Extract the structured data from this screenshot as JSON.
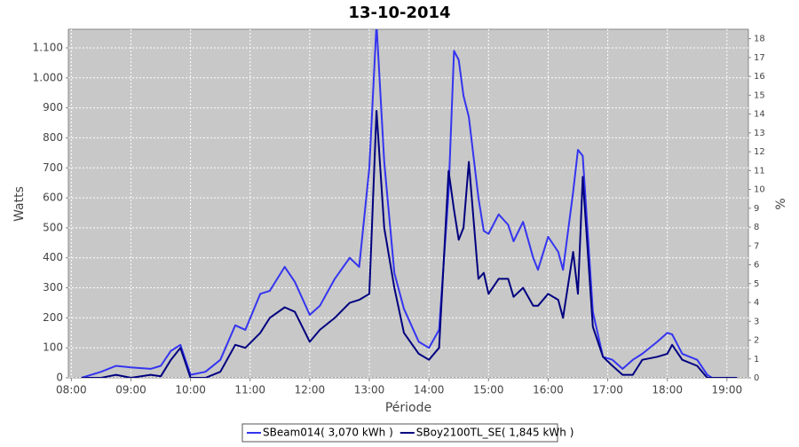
{
  "chart_data": {
    "type": "line",
    "title": "13-10-2014",
    "x_label": "Période",
    "y_label": "Watts",
    "y2_label": "%",
    "x": [
      8.17,
      8.5,
      8.75,
      9.0,
      9.33,
      9.5,
      9.67,
      9.83,
      10.0,
      10.25,
      10.5,
      10.75,
      10.92,
      11.17,
      11.33,
      11.58,
      11.75,
      12.0,
      12.17,
      12.42,
      12.67,
      12.83,
      13.0,
      13.12,
      13.25,
      13.42,
      13.58,
      13.83,
      14.0,
      14.17,
      14.33,
      14.42,
      14.5,
      14.58,
      14.67,
      14.83,
      14.92,
      15.0,
      15.17,
      15.33,
      15.42,
      15.58,
      15.75,
      15.83,
      16.0,
      16.17,
      16.25,
      16.42,
      16.5,
      16.58,
      16.75,
      16.92,
      17.08,
      17.25,
      17.42,
      17.58,
      17.83,
      18.0,
      18.08,
      18.25,
      18.5,
      18.67,
      18.75,
      19.17
    ],
    "series": [
      {
        "name": "SBeam014( 3,070 kWh )",
        "color": "#3434f0",
        "values": [
          0,
          20,
          40,
          35,
          30,
          40,
          90,
          110,
          10,
          20,
          60,
          175,
          160,
          280,
          290,
          370,
          320,
          210,
          240,
          330,
          400,
          370,
          700,
          1180,
          720,
          350,
          230,
          120,
          100,
          160,
          620,
          1090,
          1060,
          940,
          870,
          600,
          490,
          480,
          545,
          510,
          455,
          520,
          400,
          360,
          470,
          420,
          360,
          620,
          760,
          740,
          220,
          70,
          60,
          30,
          60,
          80,
          120,
          150,
          145,
          80,
          60,
          10,
          0,
          0
        ]
      },
      {
        "name": "SBoy2100TL_SE( 1,845 kWh )",
        "color": "#000080",
        "values": [
          0,
          0,
          10,
          0,
          10,
          5,
          60,
          100,
          0,
          0,
          20,
          110,
          100,
          150,
          200,
          235,
          220,
          120,
          160,
          200,
          250,
          260,
          280,
          890,
          500,
          300,
          150,
          80,
          60,
          100,
          690,
          560,
          460,
          500,
          720,
          330,
          350,
          280,
          330,
          330,
          270,
          300,
          240,
          240,
          280,
          260,
          200,
          420,
          280,
          670,
          170,
          70,
          40,
          10,
          10,
          60,
          70,
          80,
          110,
          60,
          40,
          0,
          0,
          0
        ]
      }
    ],
    "xlim": [
      7.95,
      19.36
    ],
    "xticks": [
      {
        "value": 8,
        "label": "08:00"
      },
      {
        "value": 9,
        "label": "09:00"
      },
      {
        "value": 10,
        "label": "10:00"
      },
      {
        "value": 11,
        "label": "11:00"
      },
      {
        "value": 12,
        "label": "12:00"
      },
      {
        "value": 13,
        "label": "13:00"
      },
      {
        "value": 14,
        "label": "14:00"
      },
      {
        "value": 15,
        "label": "15:00"
      },
      {
        "value": 16,
        "label": "16:00"
      },
      {
        "value": 17,
        "label": "17:00"
      },
      {
        "value": 18,
        "label": "18:00"
      },
      {
        "value": 19,
        "label": "19:00"
      }
    ],
    "ylim": [
      0,
      1162
    ],
    "yticks": [
      0,
      100,
      200,
      300,
      400,
      500,
      600,
      700,
      800,
      900,
      {
        "value": 1000,
        "label": "1.000"
      },
      {
        "value": 1100,
        "label": "1.100"
      }
    ],
    "y2lim": [
      0,
      18.5
    ],
    "y2ticks": [
      0,
      1,
      2,
      3,
      4,
      5,
      6,
      7,
      8,
      9,
      10,
      11,
      12,
      13,
      14,
      15,
      16,
      17,
      18
    ],
    "grid": true
  }
}
